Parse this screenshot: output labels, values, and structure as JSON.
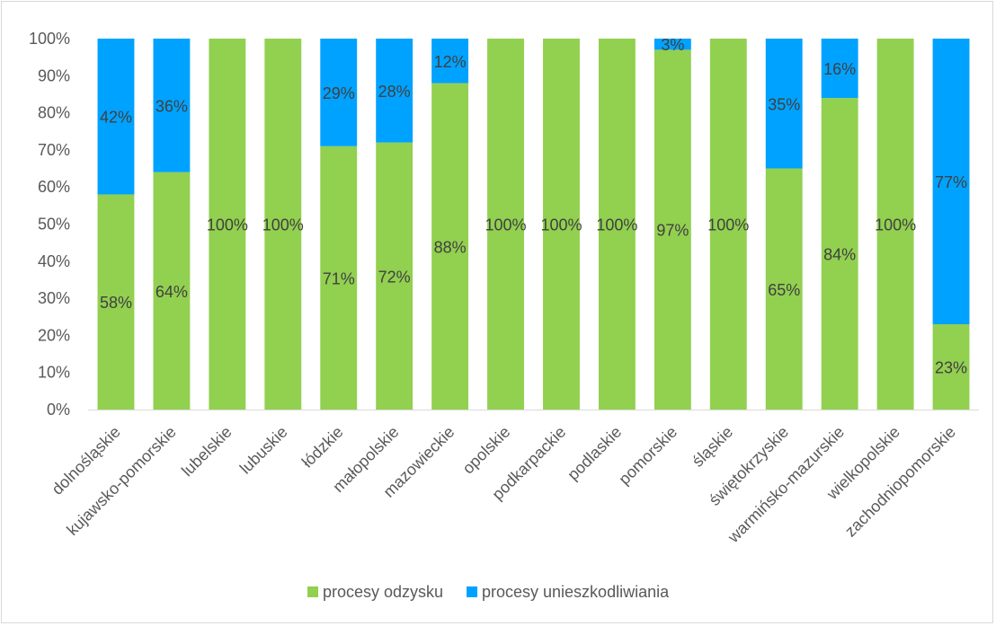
{
  "chart_data": {
    "type": "bar",
    "stacked": true,
    "percent_stacked": true,
    "categories": [
      "dolnośląskie",
      "kujawsko-pomorskie",
      "lubelskie",
      "lubuskie",
      "łódzkie",
      "małopolskie",
      "mazowieckie",
      "opolskie",
      "podkarpackie",
      "podlaskie",
      "pomorskie",
      "śląskie",
      "świętokrzyskie",
      "warmińsko-mazurskie",
      "wielkopolskie",
      "zachodniopomorskie"
    ],
    "series": [
      {
        "name": "procesy odzysku",
        "color": "#92d050",
        "values": [
          58,
          64,
          100,
          100,
          71,
          72,
          88,
          100,
          100,
          100,
          97,
          100,
          65,
          84,
          100,
          23
        ],
        "labels": [
          "58%",
          "64%",
          "100%",
          "100%",
          "71%",
          "72%",
          "88%",
          "100%",
          "100%",
          "100%",
          "97%",
          "100%",
          "65%",
          "84%",
          "100%",
          "23%"
        ]
      },
      {
        "name": "procesy unieszkodliwiania",
        "color": "#00a2ff",
        "values": [
          42,
          36,
          0,
          0,
          29,
          28,
          12,
          0,
          0,
          0,
          3,
          0,
          35,
          16,
          0,
          77
        ],
        "labels": [
          "42%",
          "36%",
          "",
          "",
          "29%",
          "28%",
          "12%",
          "",
          "",
          "",
          "3%",
          "",
          "35%",
          "16%",
          "",
          "77%"
        ]
      }
    ],
    "yticks": [
      "0%",
      "10%",
      "20%",
      "30%",
      "40%",
      "50%",
      "60%",
      "70%",
      "80%",
      "90%",
      "100%"
    ],
    "ylim": [
      0,
      100
    ],
    "title": "",
    "xlabel": "",
    "ylabel": "",
    "grid": false,
    "legend_position": "bottom"
  }
}
